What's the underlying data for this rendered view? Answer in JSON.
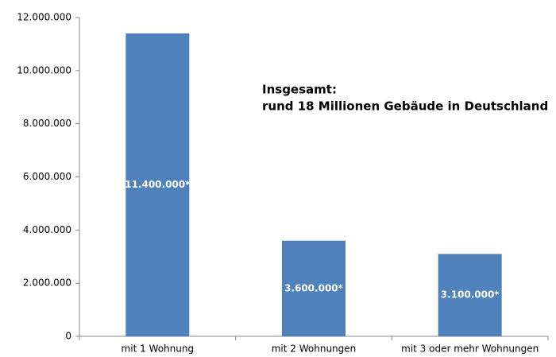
{
  "chart_data": {
    "type": "bar",
    "categories": [
      "mit 1 Wohnung",
      "mit 2 Wohnungen",
      "mit 3 oder mehr Wohnungen"
    ],
    "values": [
      11400000,
      3600000,
      3100000
    ],
    "value_labels": [
      "11.400.000*",
      "3.600.000*",
      "3.100.000*"
    ],
    "color": "#4f81bd",
    "ylim": [
      0,
      12000000
    ],
    "yticks": [
      0,
      {
        "value": 2000000,
        "label": "2.000.000"
      },
      {
        "value": 4000000,
        "label": "4.000.000"
      },
      {
        "value": 6000000,
        "label": "6.000.000"
      },
      {
        "value": 8000000,
        "label": "8.000.000"
      },
      {
        "value": 10000000,
        "label": "10.000.000"
      },
      {
        "value": 12000000,
        "label": "12.000.000"
      }
    ],
    "grid": false,
    "annotations": [
      "Insgesamt:",
      "rund 18 Millionen Gebäude in Deutschland"
    ]
  }
}
